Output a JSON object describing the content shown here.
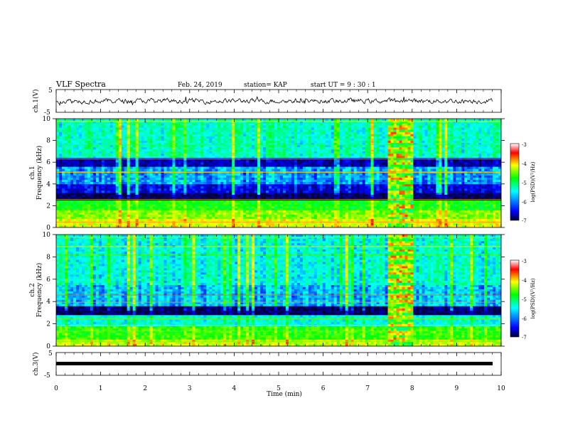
{
  "header": {
    "title": "VLF Spectra",
    "date": "Feb. 24, 2019",
    "station": "station= KAP",
    "start_ut": "start  UT =   9  : 30 : 1"
  },
  "colors": {
    "background": "#ffffff",
    "trace": "#000000",
    "colormap": [
      "#000033",
      "#0000ff",
      "#00ffff",
      "#00ff00",
      "#ffff00",
      "#ff0000",
      "#ffffff"
    ]
  },
  "chart_data": [
    {
      "id": "ch1_waveform",
      "type": "line",
      "ylabel": "ch.1(V)",
      "ylim": [
        -5,
        5
      ],
      "yticks": [
        "5",
        "-5"
      ],
      "xlim": [
        0,
        10
      ],
      "series": [
        {
          "description_values": "noisy waveform centered near 0 V",
          "values_mean": 0,
          "values_range": [
            -1.8,
            1.8
          ]
        }
      ]
    },
    {
      "id": "ch1_spectrogram",
      "type": "heatmap",
      "ylabel": "ch.1\nFrequency  (kHz)",
      "ylabel_lines": [
        "ch.1",
        "Frequency  (kHz)"
      ],
      "ylim": [
        0,
        10
      ],
      "yticks": [
        "0",
        "2",
        "4",
        "6",
        "8",
        "10"
      ],
      "xlim": [
        0,
        10
      ],
      "colorbar": {
        "label": "log(PSD)(V²/Hz)",
        "range": [
          -7,
          -3
        ],
        "ticks": [
          "-3",
          "-4",
          "-5",
          "-6",
          "-7"
        ]
      },
      "enhanced_interval_min": [
        7.45,
        8.05
      ],
      "bands": [
        {
          "f": [
            0.0,
            0.8
          ],
          "level": -3.9
        },
        {
          "f": [
            0.8,
            1.6
          ],
          "level": -4.2
        },
        {
          "f": [
            1.6,
            2.5
          ],
          "level": -4.6
        },
        {
          "f": [
            2.5,
            3.2
          ],
          "level": -6.8
        },
        {
          "f": [
            3.2,
            4.0
          ],
          "level": -6.3
        },
        {
          "f": [
            4.0,
            5.6
          ],
          "level": -5.7
        },
        {
          "f": [
            5.6,
            6.4
          ],
          "level": -6.5
        },
        {
          "f": [
            6.4,
            10.0
          ],
          "level": -5.2
        }
      ]
    },
    {
      "id": "ch2_spectrogram",
      "type": "heatmap",
      "ylabel": "ch.2\nFrequency  (kHz)",
      "ylabel_lines": [
        "ch.2",
        "Frequency  (kHz)"
      ],
      "ylim": [
        0,
        10
      ],
      "yticks": [
        "0",
        "2",
        "4",
        "6",
        "8",
        "10"
      ],
      "xlim": [
        0,
        10
      ],
      "colorbar": {
        "label": "log(PSD)(V²/Hz)",
        "range": [
          -7,
          -3
        ],
        "ticks": [
          "-3",
          "-4",
          "-5",
          "-6",
          "-7"
        ]
      },
      "enhanced_interval_min": [
        7.45,
        8.05
      ],
      "bands": [
        {
          "f": [
            0.0,
            0.6
          ],
          "level": -4.0
        },
        {
          "f": [
            0.6,
            1.8
          ],
          "level": -4.5
        },
        {
          "f": [
            1.8,
            2.8
          ],
          "level": -5.3
        },
        {
          "f": [
            2.8,
            3.6
          ],
          "level": -6.8
        },
        {
          "f": [
            3.6,
            5.5
          ],
          "level": -5.6
        },
        {
          "f": [
            5.5,
            10.0
          ],
          "level": -5.3
        }
      ]
    },
    {
      "id": "ch3_waveform",
      "type": "line",
      "ylabel": "ch.3(V)",
      "ylim": [
        -5,
        5
      ],
      "yticks": [
        "5",
        "-5"
      ],
      "xlim": [
        0,
        10
      ],
      "series": [
        {
          "x": [
            0,
            10
          ],
          "y": [
            0,
            0
          ]
        }
      ]
    }
  ],
  "xaxis": {
    "label": "Time  (min)",
    "ticks": [
      "0",
      "1",
      "2",
      "3",
      "4",
      "5",
      "6",
      "7",
      "8",
      "9",
      "10"
    ]
  }
}
